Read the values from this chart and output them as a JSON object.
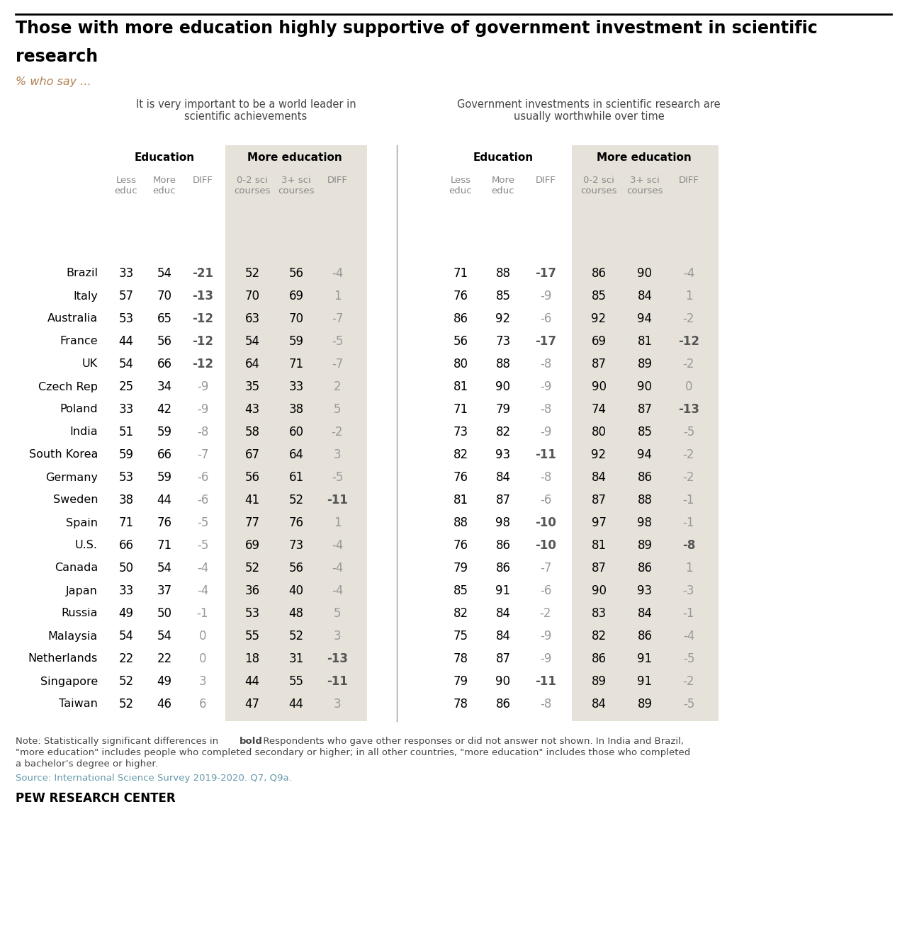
{
  "title_line1": "Those with more education highly supportive of government investment in scientific",
  "title_line2": "research",
  "subtitle": "% who say ...",
  "section1_header": "It is very important to be a world leader in\nscientific achievements",
  "section2_header": "Government investments in scientific research are\nusually worthwhile over time",
  "col_group1": "Education",
  "col_group2": "More education",
  "col_headers": [
    "Less\neduc",
    "More\neduc",
    "DIFF",
    "0-2 sci\ncourses",
    "3+ sci\ncourses",
    "DIFF"
  ],
  "countries": [
    "Brazil",
    "Italy",
    "Australia",
    "France",
    "UK",
    "Czech Rep",
    "Poland",
    "India",
    "South Korea",
    "Germany",
    "Sweden",
    "Spain",
    "U.S.",
    "Canada",
    "Japan",
    "Russia",
    "Malaysia",
    "Netherlands",
    "Singapore",
    "Taiwan"
  ],
  "data": {
    "s1_less_educ": [
      33,
      57,
      53,
      44,
      54,
      25,
      33,
      51,
      59,
      53,
      38,
      71,
      66,
      50,
      33,
      49,
      54,
      22,
      52,
      52
    ],
    "s1_more_educ": [
      54,
      70,
      65,
      56,
      66,
      34,
      42,
      59,
      66,
      59,
      44,
      76,
      71,
      54,
      37,
      50,
      54,
      22,
      49,
      46
    ],
    "s1_diff": [
      -21,
      -13,
      -12,
      -12,
      -12,
      -9,
      -9,
      -8,
      -7,
      -6,
      -6,
      -5,
      -5,
      -4,
      -4,
      -1,
      0,
      0,
      3,
      6
    ],
    "s1_02sci": [
      52,
      70,
      63,
      54,
      64,
      35,
      43,
      58,
      67,
      56,
      41,
      77,
      69,
      52,
      36,
      53,
      55,
      18,
      44,
      47
    ],
    "s1_3sci": [
      56,
      69,
      70,
      59,
      71,
      33,
      38,
      60,
      64,
      61,
      52,
      76,
      73,
      56,
      40,
      48,
      52,
      31,
      55,
      44
    ],
    "s1_diff2": [
      -4,
      1,
      -7,
      -5,
      -7,
      2,
      5,
      -2,
      3,
      -5,
      -11,
      1,
      -4,
      -4,
      -4,
      5,
      3,
      -13,
      -11,
      3
    ],
    "s2_less_educ": [
      71,
      76,
      86,
      56,
      80,
      81,
      71,
      73,
      82,
      76,
      81,
      88,
      76,
      79,
      85,
      82,
      75,
      78,
      79,
      78
    ],
    "s2_more_educ": [
      88,
      85,
      92,
      73,
      88,
      90,
      79,
      82,
      93,
      84,
      87,
      98,
      86,
      86,
      91,
      84,
      84,
      87,
      90,
      86
    ],
    "s2_diff": [
      -17,
      -9,
      -6,
      -17,
      -8,
      -9,
      -8,
      -9,
      -11,
      -8,
      -6,
      -10,
      -10,
      -7,
      -6,
      -2,
      -9,
      -9,
      -11,
      -8
    ],
    "s2_02sci": [
      86,
      85,
      92,
      69,
      87,
      90,
      74,
      80,
      92,
      84,
      87,
      97,
      81,
      87,
      90,
      83,
      82,
      86,
      89,
      84
    ],
    "s2_3sci": [
      90,
      84,
      94,
      81,
      89,
      90,
      87,
      85,
      94,
      86,
      88,
      98,
      89,
      86,
      93,
      84,
      86,
      91,
      91,
      89
    ],
    "s2_diff2": [
      -4,
      1,
      -2,
      -12,
      -2,
      0,
      -13,
      -5,
      -2,
      -2,
      -1,
      -1,
      -8,
      1,
      -3,
      -1,
      -4,
      -5,
      -2,
      -5
    ]
  },
  "bold_s1_diff_rows": [
    0,
    1,
    2,
    3,
    4
  ],
  "bold_s2_diff_rows": [
    0,
    3,
    8,
    11,
    12,
    18
  ],
  "bold_s1_diff2_rows": [
    10,
    17,
    18
  ],
  "bold_s2_diff2_rows": [
    3,
    6,
    12
  ],
  "note_bold": "Note: Statistically significant differences in ",
  "note_bold_word": "bold",
  "note_rest": ". Respondents who gave other responses or did not answer not shown. In India and Brazil,\n\"more education\" includes people who completed secondary or higher; in all other countries, \"more education\" includes those who completed\na bachelor's degree or higher.",
  "source": "Source: International Science Survey 2019-2020. Q7, Q9a.",
  "footer": "PEW RESEARCH CENTER",
  "shaded_color": "#e6e2da",
  "divider_color": "#999999"
}
